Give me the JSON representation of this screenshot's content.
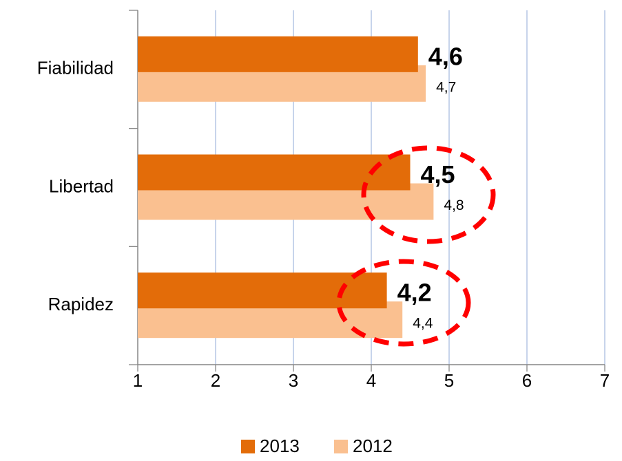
{
  "chart_data": {
    "type": "bar",
    "orientation": "horizontal",
    "categories": [
      "Fiabilidad",
      "Libertad",
      "Rapidez"
    ],
    "series": [
      {
        "name": "2013",
        "color": "#e36c09",
        "values": [
          4.6,
          4.5,
          4.2
        ],
        "value_labels": [
          "4,6",
          "4,5",
          "4,2"
        ]
      },
      {
        "name": "2012",
        "color": "#fac090",
        "values": [
          4.7,
          4.8,
          4.4
        ],
        "value_labels": [
          "4,7",
          "4,8",
          "4,4"
        ]
      }
    ],
    "xlim": [
      1,
      7
    ],
    "xticks": [
      1,
      2,
      3,
      4,
      5,
      6,
      7
    ],
    "grid": true,
    "legend": "bottom"
  }
}
